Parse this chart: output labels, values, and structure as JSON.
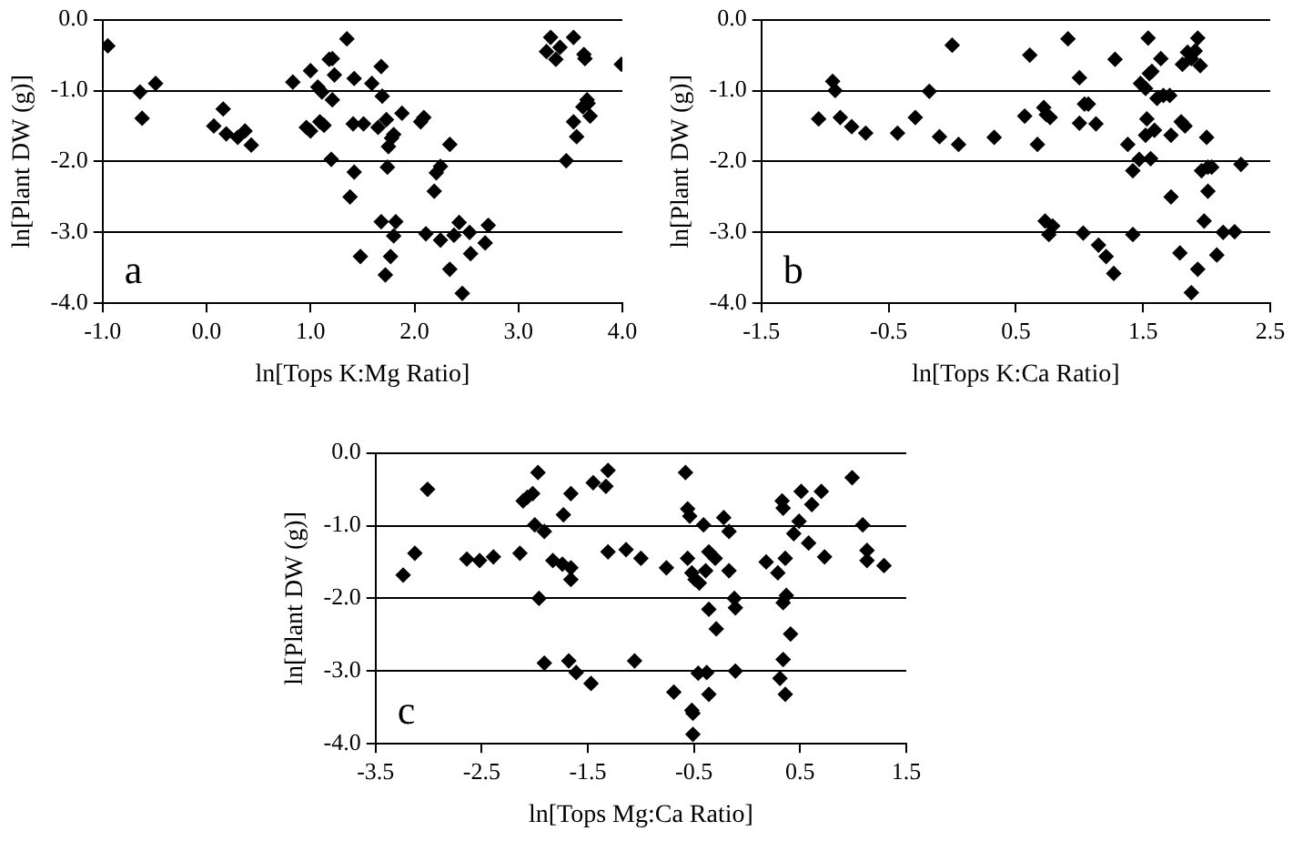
{
  "chart_data": [
    {
      "type": "scatter",
      "xlabel": "ln[Tops K:Mg Ratio]",
      "ylabel": "ln[Plant DW (g)]",
      "annotations": [
        "a"
      ],
      "marker": "diamond",
      "grid": "y",
      "xlim": [
        -1.0,
        4.0
      ],
      "xticks": [
        {
          "value": -1,
          "label": "-1.0"
        },
        {
          "value": 0,
          "label": "0.0"
        },
        {
          "value": 1,
          "label": "1.0"
        },
        {
          "value": 2,
          "label": "2.0"
        },
        {
          "value": 3,
          "label": "3.0"
        },
        {
          "value": 4,
          "label": "4.0"
        }
      ],
      "ylim": [
        -4.0,
        0.0
      ],
      "yticks": [
        {
          "value": -4,
          "label": "-4.0"
        },
        {
          "value": -3,
          "label": "-3.0"
        },
        {
          "value": -2,
          "label": "-2.0"
        },
        {
          "value": -1,
          "label": "-1.0"
        },
        {
          "value": 0,
          "label": "0.0"
        }
      ],
      "series": [
        {
          "color": "#000000",
          "x": [
            -0.95,
            -0.64,
            -0.62,
            -0.49,
            0.07,
            0.16,
            0.19,
            0.3,
            0.37,
            0.43,
            0.83,
            1.0,
            0.96,
            1.0,
            1.07,
            1.11,
            1.09,
            1.13,
            1.21,
            1.18,
            1.23,
            1.21,
            1.2,
            1.35,
            1.38,
            1.42,
            1.42,
            1.41,
            1.51,
            1.48,
            1.59,
            1.65,
            1.68,
            1.69,
            1.68,
            1.72,
            1.73,
            1.74,
            1.75,
            1.78,
            1.8,
            1.82,
            1.8,
            1.77,
            1.88,
            2.06,
            2.09,
            2.11,
            2.19,
            2.21,
            2.25,
            2.34,
            2.25,
            2.34,
            2.38,
            2.43,
            2.46,
            2.53,
            2.54,
            2.68,
            2.71,
            3.27,
            3.31,
            3.36,
            3.4,
            3.53,
            3.63,
            3.64,
            3.46,
            3.53,
            3.56,
            3.62,
            3.66,
            3.67,
            3.69,
            3.99
          ],
          "values": [
            -0.37,
            -1.02,
            -1.39,
            -0.9,
            -1.5,
            -1.26,
            -1.61,
            -1.66,
            -1.57,
            -1.77,
            -0.88,
            -0.72,
            -1.52,
            -1.57,
            -0.95,
            -1.02,
            -1.44,
            -1.49,
            -0.55,
            -0.56,
            -0.78,
            -1.13,
            -1.97,
            -0.27,
            -2.5,
            -2.15,
            -0.83,
            -1.47,
            -1.47,
            -3.34,
            -0.9,
            -1.52,
            -0.66,
            -1.08,
            -2.85,
            -3.6,
            -1.41,
            -2.08,
            -1.79,
            -1.67,
            -1.62,
            -2.85,
            -3.05,
            -3.34,
            -1.32,
            -1.44,
            -1.38,
            -3.02,
            -2.42,
            -2.16,
            -2.07,
            -1.76,
            -3.11,
            -3.52,
            -3.04,
            -2.86,
            -3.86,
            -3.0,
            -3.3,
            -3.15,
            -2.9,
            -0.45,
            -0.25,
            -0.56,
            -0.39,
            -0.25,
            -0.49,
            -0.55,
            -1.99,
            -1.44,
            -1.65,
            -1.23,
            -1.13,
            -1.18,
            -1.36,
            -0.63
          ]
        }
      ]
    },
    {
      "type": "scatter",
      "xlabel": "ln[Tops K:Ca Ratio]",
      "ylabel": "ln[Plant DW (g)]",
      "annotations": [
        "b"
      ],
      "marker": "diamond",
      "grid": "y",
      "xlim": [
        -1.5,
        2.5
      ],
      "xticks": [
        -1.5,
        -0.5,
        0.5,
        1.5,
        2.5
      ],
      "ylim": [
        -4.0,
        0.0
      ],
      "yticks": [
        {
          "value": -4,
          "label": "-4.0"
        },
        {
          "value": -3,
          "label": "-3.0"
        },
        {
          "value": -2,
          "label": "-2.0"
        },
        {
          "value": -1,
          "label": "-1.0"
        },
        {
          "value": 0,
          "label": "0.0"
        }
      ],
      "series": [
        {
          "color": "#000000",
          "x": [
            -1.05,
            -0.94,
            -0.92,
            -0.88,
            -0.79,
            -0.68,
            -0.43,
            -0.29,
            -0.18,
            -0.1,
            0.0,
            0.05,
            0.33,
            0.57,
            0.61,
            0.67,
            0.72,
            0.74,
            0.77,
            0.73,
            0.76,
            0.79,
            0.91,
            1.0,
            1.0,
            1.04,
            1.07,
            1.13,
            1.03,
            1.15,
            1.21,
            1.27,
            1.28,
            1.38,
            1.42,
            1.42,
            1.47,
            1.48,
            1.52,
            1.53,
            1.52,
            1.56,
            1.55,
            1.57,
            1.54,
            1.59,
            1.61,
            1.64,
            1.66,
            1.71,
            1.72,
            1.72,
            1.79,
            1.8,
            1.83,
            1.81,
            1.85,
            1.88,
            1.93,
            1.91,
            1.95,
            1.88,
            1.93,
            1.96,
            1.98,
            2.0,
            2.01,
            2.01,
            2.04,
            2.08,
            2.13,
            2.22,
            2.27
          ],
          "values": [
            -1.4,
            -0.87,
            -1.0,
            -1.38,
            -1.51,
            -1.6,
            -1.6,
            -1.38,
            -1.01,
            -1.65,
            -0.36,
            -1.76,
            -1.66,
            -1.36,
            -0.5,
            -1.76,
            -1.24,
            -1.34,
            -1.38,
            -2.84,
            -3.03,
            -2.91,
            -0.27,
            -0.82,
            -1.46,
            -1.19,
            -1.19,
            -1.47,
            -3.01,
            -3.18,
            -3.34,
            -3.58,
            -0.56,
            -1.76,
            -3.03,
            -2.13,
            -1.97,
            -0.9,
            -0.97,
            -1.4,
            -1.63,
            -1.96,
            -0.76,
            -0.73,
            -0.26,
            -1.56,
            -1.11,
            -0.55,
            -1.07,
            -1.07,
            -1.63,
            -2.5,
            -3.29,
            -1.44,
            -1.5,
            -0.63,
            -0.46,
            -0.55,
            -0.26,
            -0.44,
            -0.65,
            -3.85,
            -3.52,
            -2.13,
            -2.84,
            -1.66,
            -2.42,
            -2.08,
            -2.08,
            -3.32,
            -3.0,
            -2.99,
            -2.04
          ]
        }
      ]
    },
    {
      "type": "scatter",
      "xlabel": "ln[Tops Mg:Ca Ratio]",
      "ylabel": "ln[Plant DW (g)]",
      "annotations": [
        "c"
      ],
      "marker": "diamond",
      "grid": "y",
      "xlim": [
        -3.5,
        1.5
      ],
      "xticks": [
        -3.5,
        -2.5,
        -1.5,
        -0.5,
        0.5,
        1.5
      ],
      "ylim": [
        -4.0,
        0.0
      ],
      "yticks": [
        {
          "value": -4,
          "label": "-4.0"
        },
        {
          "value": -3,
          "label": "-3.0"
        },
        {
          "value": -2,
          "label": "-2.0"
        },
        {
          "value": -1,
          "label": "-1.0"
        },
        {
          "value": 0,
          "label": "0.0"
        }
      ],
      "series": [
        {
          "color": "#000000",
          "x": [
            -3.24,
            -3.13,
            -3.01,
            -2.64,
            -2.52,
            -2.39,
            -2.14,
            -2.11,
            -2.07,
            -2.02,
            -2.0,
            -1.97,
            -1.96,
            -1.91,
            -1.91,
            -1.83,
            -1.74,
            -1.73,
            -1.68,
            -1.66,
            -1.66,
            -1.66,
            -1.61,
            -1.47,
            -1.45,
            -1.33,
            -1.31,
            -1.31,
            -1.14,
            -1.06,
            -1.0,
            -0.76,
            -0.69,
            -0.51,
            -0.58,
            -0.56,
            -0.54,
            -0.56,
            -0.52,
            -0.49,
            -0.45,
            -0.52,
            -0.51,
            -0.46,
            -0.41,
            -0.39,
            -0.36,
            -0.36,
            -0.38,
            -0.36,
            -0.3,
            -0.29,
            -0.22,
            -0.17,
            -0.17,
            -0.12,
            -0.11,
            -0.11,
            0.18,
            0.29,
            0.33,
            0.34,
            0.36,
            0.34,
            0.37,
            0.34,
            0.31,
            0.36,
            0.41,
            0.44,
            0.49,
            0.51,
            0.58,
            0.61,
            0.7,
            0.73,
            0.99,
            1.09,
            1.13,
            1.13,
            1.29
          ],
          "values": [
            -1.68,
            -1.38,
            -0.5,
            -1.46,
            -1.48,
            -1.43,
            -1.38,
            -0.66,
            -0.61,
            -0.56,
            -0.99,
            -0.27,
            -2.0,
            -2.89,
            -1.08,
            -1.48,
            -1.53,
            -0.85,
            -2.86,
            -1.58,
            -1.74,
            -0.56,
            -3.02,
            -3.17,
            -0.41,
            -0.46,
            -0.24,
            -1.36,
            -1.33,
            -2.86,
            -1.45,
            -1.58,
            -3.29,
            -3.87,
            -0.27,
            -0.77,
            -0.87,
            -1.45,
            -1.65,
            -1.74,
            -1.79,
            -3.54,
            -3.58,
            -3.03,
            -0.99,
            -1.62,
            -1.36,
            -2.15,
            -3.02,
            -3.32,
            -1.45,
            -2.42,
            -0.89,
            -1.08,
            -1.62,
            -2.0,
            -2.13,
            -3.0,
            -1.5,
            -1.65,
            -0.66,
            -0.76,
            -1.45,
            -2.06,
            -1.96,
            -2.84,
            -3.1,
            -3.32,
            -2.49,
            -1.11,
            -0.94,
            -0.53,
            -1.24,
            -0.71,
            -0.53,
            -1.43,
            -0.34,
            -0.99,
            -1.34,
            -1.48,
            -1.55
          ]
        }
      ]
    }
  ]
}
